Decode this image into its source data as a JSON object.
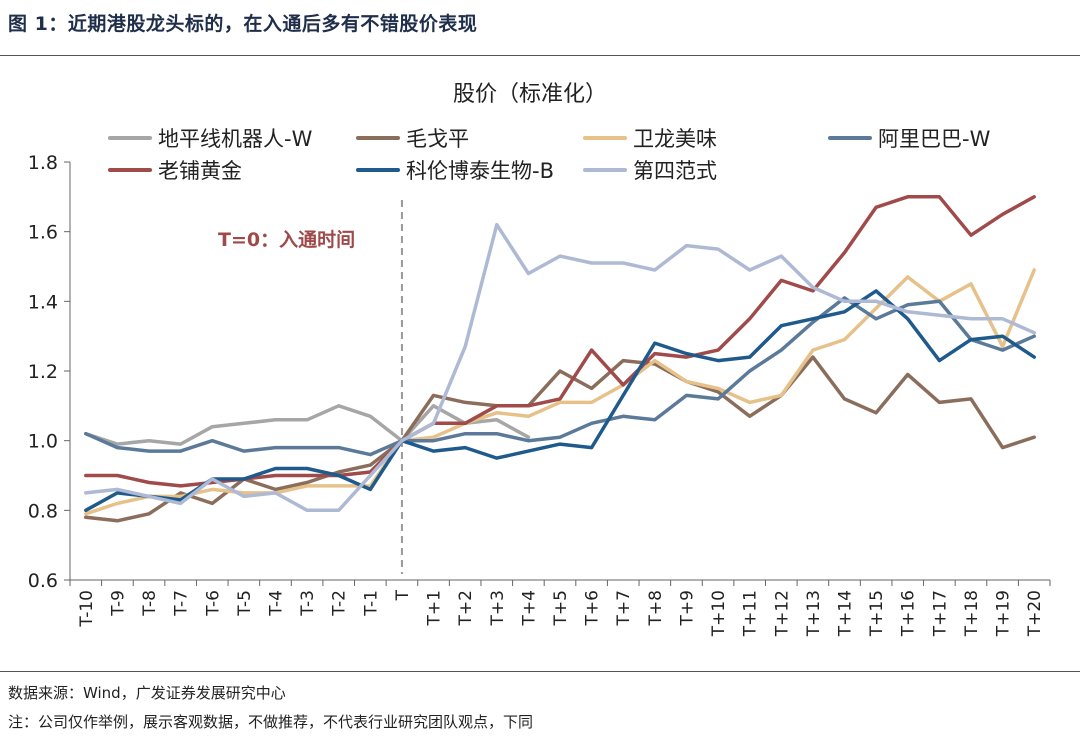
{
  "figure": {
    "title": "图 1：近期港股龙头标的，在入通后多有不错股价表现",
    "source": "数据来源：Wind，广发证券发展研究中心",
    "note": "注：公司仅作举例，展示客观数据，不做推荐，不代表行业研究团队观点，下同"
  },
  "chart_data": {
    "type": "line",
    "title": "股价（标准化）",
    "xlabel": "",
    "ylabel": "",
    "ylim": [
      0.6,
      1.8
    ],
    "yticks": [
      "0.6",
      "0.8",
      "1.0",
      "1.2",
      "1.4",
      "1.6",
      "1.8"
    ],
    "grid": false,
    "legend_position": "top",
    "annotation": "T=0：入通时间",
    "annotation_color": "#9e4a4a",
    "reference_line_at": "T",
    "categories": [
      "T-10",
      "T-9",
      "T-8",
      "T-7",
      "T-6",
      "T-5",
      "T-4",
      "T-3",
      "T-2",
      "T-1",
      "T",
      "T+1",
      "T+2",
      "T+3",
      "T+4",
      "T+5",
      "T+6",
      "T+7",
      "T+8",
      "T+9",
      "T+10",
      "T+11",
      "T+12",
      "T+13",
      "T+14",
      "T+15",
      "T+16",
      "T+17",
      "T+18",
      "T+19",
      "T+20"
    ],
    "series": [
      {
        "name": "地平线机器人-W",
        "color": "#a6a6a6",
        "values": [
          1.02,
          0.99,
          1.0,
          0.99,
          1.04,
          1.05,
          1.06,
          1.06,
          1.1,
          1.07,
          1.0,
          1.1,
          1.05,
          1.06,
          1.01,
          null,
          null,
          null,
          null,
          null,
          null,
          null,
          null,
          null,
          null,
          null,
          null,
          null,
          null,
          null,
          null
        ]
      },
      {
        "name": "毛戈平",
        "color": "#8b6d5c",
        "values": [
          0.78,
          0.77,
          0.79,
          0.85,
          0.82,
          0.89,
          0.86,
          0.88,
          0.91,
          0.93,
          1.0,
          1.13,
          1.11,
          1.1,
          1.1,
          1.2,
          1.15,
          1.23,
          1.22,
          1.17,
          1.14,
          1.07,
          1.13,
          1.24,
          1.12,
          1.08,
          1.19,
          1.11,
          1.12,
          0.98,
          1.01
        ]
      },
      {
        "name": "卫龙美味",
        "color": "#e6c28a",
        "values": [
          0.79,
          0.82,
          0.84,
          0.84,
          0.86,
          0.85,
          0.85,
          0.87,
          0.87,
          0.87,
          1.0,
          1.01,
          1.05,
          1.08,
          1.07,
          1.11,
          1.11,
          1.16,
          1.23,
          1.17,
          1.15,
          1.11,
          1.13,
          1.26,
          1.29,
          1.38,
          1.47,
          1.4,
          1.45,
          1.27,
          1.49
        ]
      },
      {
        "name": "阿里巴巴-W",
        "color": "#5b7a99",
        "values": [
          1.02,
          0.98,
          0.97,
          0.97,
          1.0,
          0.97,
          0.98,
          0.98,
          0.98,
          0.96,
          1.0,
          1.0,
          1.02,
          1.02,
          1.0,
          1.01,
          1.05,
          1.07,
          1.06,
          1.13,
          1.12,
          1.2,
          1.26,
          1.34,
          1.41,
          1.35,
          1.39,
          1.4,
          1.29,
          1.26,
          1.3
        ]
      },
      {
        "name": "老铺黄金",
        "color": "#a04a4a",
        "values": [
          0.9,
          0.9,
          0.88,
          0.87,
          0.88,
          0.89,
          0.9,
          0.9,
          0.9,
          0.91,
          1.0,
          1.05,
          1.05,
          1.1,
          1.1,
          1.12,
          1.26,
          1.16,
          1.25,
          1.24,
          1.26,
          1.35,
          1.46,
          1.43,
          1.54,
          1.67,
          1.7,
          1.7,
          1.59,
          1.65,
          1.7
        ]
      },
      {
        "name": "科伦博泰生物-B",
        "color": "#1f5a8c",
        "values": [
          0.8,
          0.85,
          0.84,
          0.83,
          0.89,
          0.89,
          0.92,
          0.92,
          0.9,
          0.86,
          1.0,
          0.97,
          0.98,
          0.95,
          0.97,
          0.99,
          0.98,
          1.13,
          1.28,
          1.25,
          1.23,
          1.24,
          1.33,
          1.35,
          1.37,
          1.43,
          1.35,
          1.23,
          1.29,
          1.3,
          1.24
        ]
      },
      {
        "name": "第四范式",
        "color": "#aeb9d4",
        "values": [
          0.85,
          0.86,
          0.84,
          0.82,
          0.89,
          0.84,
          0.85,
          0.8,
          0.8,
          0.9,
          1.0,
          1.05,
          1.27,
          1.62,
          1.48,
          1.53,
          1.51,
          1.51,
          1.49,
          1.56,
          1.55,
          1.49,
          1.53,
          1.44,
          1.4,
          1.4,
          1.37,
          1.36,
          1.35,
          1.35,
          1.31
        ]
      }
    ]
  }
}
